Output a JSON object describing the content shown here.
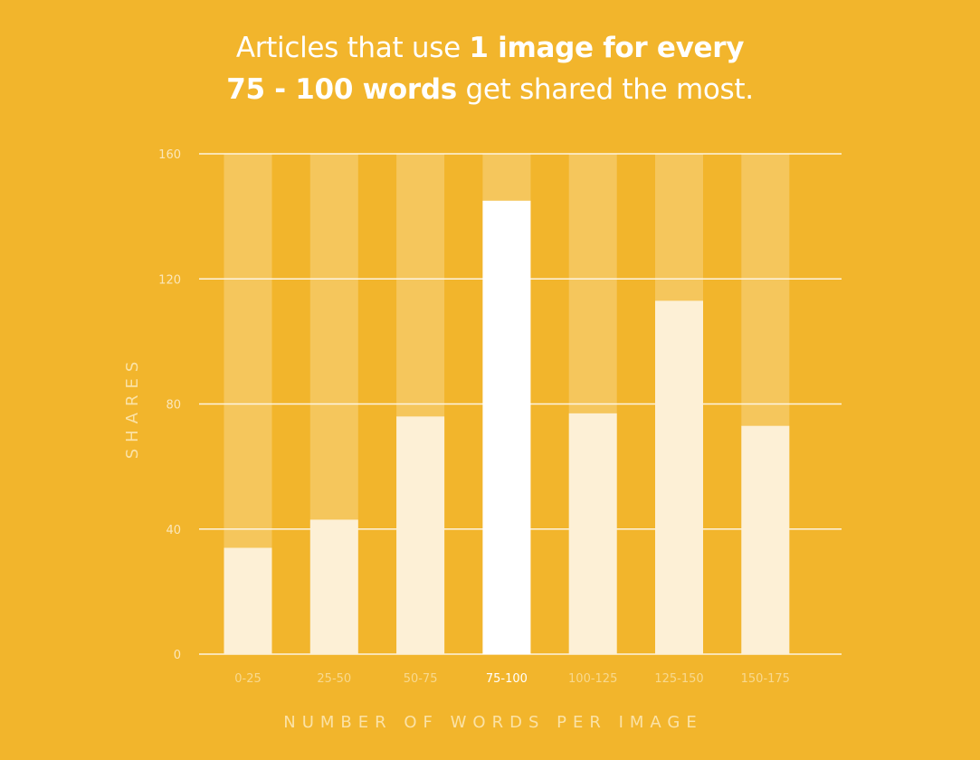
{
  "title": {
    "line1_plain": "Articles that use ",
    "line1_bold": "1 image for every",
    "line2_bold": "75 - 100 words",
    "line2_plain": " get shared the most."
  },
  "colors": {
    "background": "#f2b52c",
    "bar": "#fdf0d6",
    "bar_highlight": "#ffffff",
    "bar_track": "#f5c65c",
    "grid": "#fdf4e2"
  },
  "chart_data": {
    "type": "bar",
    "categories": [
      "0-25",
      "25-50",
      "50-75",
      "75-100",
      "100-125",
      "125-150",
      "150-175"
    ],
    "values": [
      34,
      43,
      76,
      145,
      77,
      113,
      73
    ],
    "highlight_index": 3,
    "ylim": [
      0,
      160
    ],
    "yticks": [
      0,
      40,
      80,
      120,
      160
    ],
    "xlabel": "NUMBER OF WORDS PER IMAGE",
    "ylabel": "SHARES",
    "grid": true,
    "legend": "none"
  }
}
